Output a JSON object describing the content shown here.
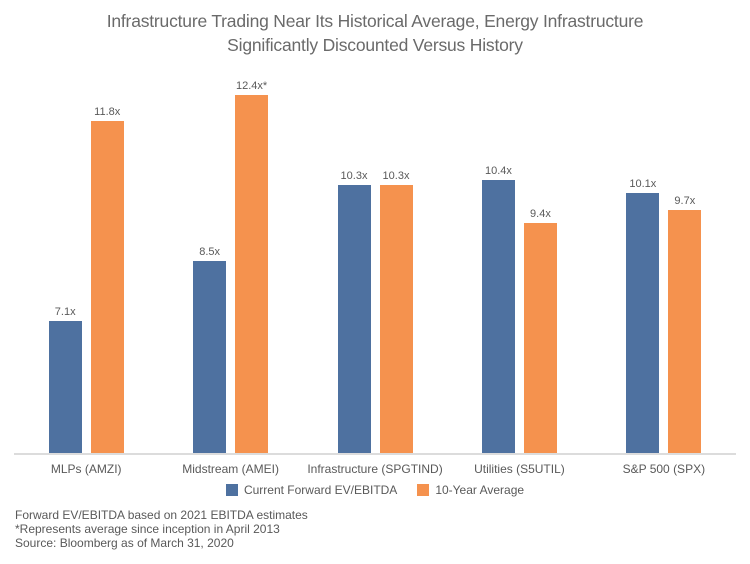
{
  "chart_data": {
    "type": "bar",
    "title": "Infrastructure Trading Near Its Historical Average, Energy Infrastructure Significantly Discounted Versus History",
    "title_lines": [
      "Infrastructure Trading Near Its Historical Average, Energy Infrastructure",
      "Significantly Discounted Versus History"
    ],
    "categories": [
      "MLPs (AMZI)",
      "Midstream (AMEI)",
      "Infrastructure (SPGTIND)",
      "Utilities (S5UTIL)",
      "S&P 500 (SPX)"
    ],
    "series": [
      {
        "name": "Current Forward EV/EBITDA",
        "color": "#4e71a0",
        "values": [
          7.1,
          8.5,
          10.3,
          10.4,
          10.1
        ],
        "labels": [
          "7.1x",
          "8.5x",
          "10.3x",
          "10.4x",
          "10.1x"
        ]
      },
      {
        "name": "10-Year Average",
        "color": "#f5924e",
        "values": [
          11.8,
          12.4,
          10.3,
          9.4,
          9.7
        ],
        "labels": [
          "11.8x",
          "12.4x*",
          "10.3x",
          "9.4x",
          "9.7x"
        ]
      }
    ],
    "xlabel": "",
    "ylabel": "",
    "ylim": [
      4,
      12.8
    ],
    "grid": false,
    "legend_position": "bottom",
    "axis_line_color": "#dcdcdc"
  },
  "footnotes": [
    "Forward EV/EBITDA based on 2021 EBITDA estimates",
    "*Represents average since inception in April 2013",
    "Source: Bloomberg as of March 31, 2020"
  ]
}
